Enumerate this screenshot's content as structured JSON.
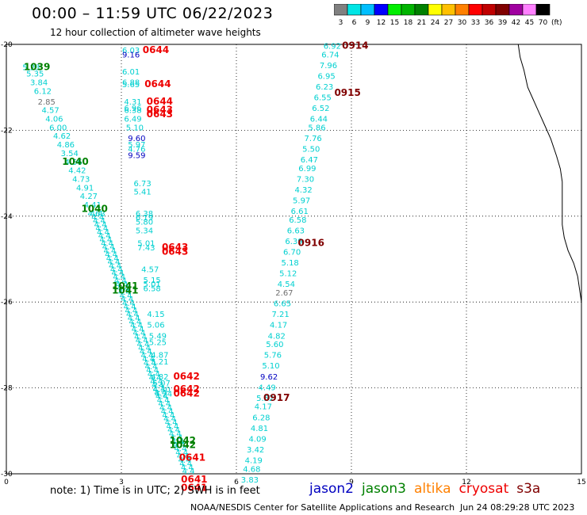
{
  "header": {
    "title": "00:00 – 11:59 UTC 06/22/2023",
    "subtitle": "12 hour collection of altimeter wave heights"
  },
  "colorbar": {
    "unit": "(ft)",
    "steps": [
      {
        "label": "3",
        "color": "#808080"
      },
      {
        "label": "6",
        "color": "#00e5e5"
      },
      {
        "label": "9",
        "color": "#00bfff"
      },
      {
        "label": "12",
        "color": "#0000ff"
      },
      {
        "label": "15",
        "color": "#00ee00"
      },
      {
        "label": "18",
        "color": "#00b400"
      },
      {
        "label": "21",
        "color": "#008000"
      },
      {
        "label": "24",
        "color": "#ffff00"
      },
      {
        "label": "27",
        "color": "#ffc000"
      },
      {
        "label": "30",
        "color": "#ff8000"
      },
      {
        "label": "33",
        "color": "#ff0000"
      },
      {
        "label": "36",
        "color": "#c00000"
      },
      {
        "label": "39",
        "color": "#800000"
      },
      {
        "label": "42",
        "color": "#a000a0"
      },
      {
        "label": "45",
        "color": "#ff80ff"
      },
      {
        "label": "70",
        "color": "#000000"
      }
    ]
  },
  "map": {
    "x_ticks": [
      "0",
      "3",
      "6",
      "9",
      "12",
      "15"
    ],
    "y_ticks": [
      "-20",
      "-22",
      "-24",
      "-26",
      "-28",
      "-30"
    ],
    "colors": {
      "cyan": "#00d0d0",
      "blue": "#0000c0",
      "green": "#008000",
      "red": "#ee0000",
      "darkred": "#800000",
      "grey": "#707070"
    },
    "time_labels": [
      {
        "text": "1039",
        "lon": 0.8,
        "lat": -20.6,
        "color": "green"
      },
      {
        "text": "1040",
        "lon": 1.8,
        "lat": -22.8,
        "color": "green"
      },
      {
        "text": "1040",
        "lon": 2.3,
        "lat": -23.9,
        "color": "green"
      },
      {
        "text": "1041",
        "lon": 3.1,
        "lat": -25.7,
        "color": "green"
      },
      {
        "text": "1041",
        "lon": 3.1,
        "lat": -25.8,
        "color": "green"
      },
      {
        "text": "1042",
        "lon": 4.6,
        "lat": -29.3,
        "color": "green"
      },
      {
        "text": "1042",
        "lon": 4.6,
        "lat": -29.4,
        "color": "green"
      },
      {
        "text": "0644",
        "lon": 3.9,
        "lat": -20.2,
        "color": "red"
      },
      {
        "text": "0644",
        "lon": 3.95,
        "lat": -21.0,
        "color": "red"
      },
      {
        "text": "0644",
        "lon": 4.0,
        "lat": -21.4,
        "color": "red"
      },
      {
        "text": "0643",
        "lon": 4.0,
        "lat": -21.6,
        "color": "red"
      },
      {
        "text": "0643",
        "lon": 4.0,
        "lat": -21.7,
        "color": "red"
      },
      {
        "text": "0643",
        "lon": 4.4,
        "lat": -24.8,
        "color": "red"
      },
      {
        "text": "0643",
        "lon": 4.4,
        "lat": -24.9,
        "color": "red"
      },
      {
        "text": "0642",
        "lon": 4.7,
        "lat": -27.8,
        "color": "red"
      },
      {
        "text": "0642",
        "lon": 4.7,
        "lat": -28.1,
        "color": "red"
      },
      {
        "text": "0642",
        "lon": 4.7,
        "lat": -28.2,
        "color": "red"
      },
      {
        "text": "0641",
        "lon": 4.85,
        "lat": -29.7,
        "color": "red"
      },
      {
        "text": "0641",
        "lon": 4.9,
        "lat": -30.2,
        "color": "red"
      },
      {
        "text": "0641",
        "lon": 4.9,
        "lat": -30.4,
        "color": "red"
      },
      {
        "text": "0914",
        "lon": 9.1,
        "lat": -20.1,
        "color": "darkred"
      },
      {
        "text": "0915",
        "lon": 8.9,
        "lat": -21.2,
        "color": "darkred"
      },
      {
        "text": "0916",
        "lon": 7.95,
        "lat": -24.7,
        "color": "darkred"
      },
      {
        "text": "0917",
        "lon": 7.05,
        "lat": -28.3,
        "color": "darkred"
      }
    ],
    "track_a": [
      {
        "text": "6.03",
        "lon": 3.25,
        "lat": -20.2,
        "color": "cyan"
      },
      {
        "text": "9.16",
        "lon": 3.25,
        "lat": -20.3,
        "color": "blue"
      },
      {
        "text": "6.01",
        "lon": 3.25,
        "lat": -20.7,
        "color": "cyan"
      },
      {
        "text": "6.88",
        "lon": 3.25,
        "lat": -20.95,
        "color": "cyan"
      },
      {
        "text": "5.65",
        "lon": 3.25,
        "lat": -21.0,
        "color": "cyan"
      },
      {
        "text": "4.31",
        "lon": 3.3,
        "lat": -21.4,
        "color": "cyan"
      },
      {
        "text": "6.96",
        "lon": 3.3,
        "lat": -21.55,
        "color": "cyan"
      },
      {
        "text": "6.38",
        "lon": 3.3,
        "lat": -21.6,
        "color": "cyan"
      },
      {
        "text": "6.49",
        "lon": 3.3,
        "lat": -21.8,
        "color": "cyan"
      },
      {
        "text": "5.10",
        "lon": 3.35,
        "lat": -22.0,
        "color": "cyan"
      },
      {
        "text": "9.60",
        "lon": 3.4,
        "lat": -22.25,
        "color": "blue"
      },
      {
        "text": "5.97",
        "lon": 3.4,
        "lat": -22.4,
        "color": "cyan"
      },
      {
        "text": "4.76",
        "lon": 3.4,
        "lat": -22.5,
        "color": "cyan"
      },
      {
        "text": "9.59",
        "lon": 3.4,
        "lat": -22.65,
        "color": "blue"
      },
      {
        "text": "6.73",
        "lon": 3.55,
        "lat": -23.3,
        "color": "cyan"
      },
      {
        "text": "5.41",
        "lon": 3.55,
        "lat": -23.5,
        "color": "cyan"
      },
      {
        "text": "6.38",
        "lon": 3.6,
        "lat": -24.0,
        "color": "cyan"
      },
      {
        "text": "6.19",
        "lon": 3.6,
        "lat": -24.1,
        "color": "cyan"
      },
      {
        "text": "5.80",
        "lon": 3.6,
        "lat": -24.2,
        "color": "cyan"
      },
      {
        "text": "5.34",
        "lon": 3.6,
        "lat": -24.4,
        "color": "cyan"
      },
      {
        "text": "5.01",
        "lon": 3.65,
        "lat": -24.7,
        "color": "cyan"
      },
      {
        "text": "7.43",
        "lon": 3.65,
        "lat": -24.8,
        "color": "cyan"
      },
      {
        "text": "4.57",
        "lon": 3.75,
        "lat": -25.3,
        "color": "cyan"
      },
      {
        "text": "5.15",
        "lon": 3.8,
        "lat": -25.55,
        "color": "cyan"
      },
      {
        "text": "5.01",
        "lon": 3.8,
        "lat": -25.65,
        "color": "cyan"
      },
      {
        "text": "6.58",
        "lon": 3.8,
        "lat": -25.75,
        "color": "cyan"
      },
      {
        "text": "4.15",
        "lon": 3.9,
        "lat": -26.35,
        "color": "cyan"
      },
      {
        "text": "5.06",
        "lon": 3.9,
        "lat": -26.6,
        "color": "cyan"
      },
      {
        "text": "5.49",
        "lon": 3.95,
        "lat": -26.85,
        "color": "cyan"
      },
      {
        "text": "5.25",
        "lon": 3.95,
        "lat": -27.0,
        "color": "cyan"
      },
      {
        "text": "4.87",
        "lon": 4.0,
        "lat": -27.3,
        "color": "cyan"
      },
      {
        "text": "5.21",
        "lon": 4.0,
        "lat": -27.45,
        "color": "cyan"
      },
      {
        "text": "4.82",
        "lon": 4.0,
        "lat": -27.8,
        "color": "cyan"
      },
      {
        "text": "5.07",
        "lon": 4.05,
        "lat": -27.95,
        "color": "cyan"
      },
      {
        "text": "4.30",
        "lon": 4.05,
        "lat": -28.1,
        "color": "cyan"
      },
      {
        "text": "4.24",
        "lon": 4.1,
        "lat": -28.2,
        "color": "cyan"
      }
    ],
    "track_c": [
      {
        "text": "6.92",
        "lon": 8.5,
        "lat": -20.1,
        "color": "cyan"
      },
      {
        "text": "6.74",
        "lon": 8.45,
        "lat": -20.3,
        "color": "cyan"
      },
      {
        "text": "7.96",
        "lon": 8.4,
        "lat": -20.55,
        "color": "cyan"
      },
      {
        "text": "6.95",
        "lon": 8.35,
        "lat": -20.8,
        "color": "cyan"
      },
      {
        "text": "6.23",
        "lon": 8.3,
        "lat": -21.05,
        "color": "cyan"
      },
      {
        "text": "6.55",
        "lon": 8.25,
        "lat": -21.3,
        "color": "cyan"
      },
      {
        "text": "6.52",
        "lon": 8.2,
        "lat": -21.55,
        "color": "cyan"
      },
      {
        "text": "6.44",
        "lon": 8.15,
        "lat": -21.8,
        "color": "cyan"
      },
      {
        "text": "5.86",
        "lon": 8.1,
        "lat": -22.0,
        "color": "cyan"
      },
      {
        "text": "7.76",
        "lon": 8.0,
        "lat": -22.25,
        "color": "cyan"
      },
      {
        "text": "5.50",
        "lon": 7.95,
        "lat": -22.5,
        "color": "cyan"
      },
      {
        "text": "6.47",
        "lon": 7.9,
        "lat": -22.75,
        "color": "cyan"
      },
      {
        "text": "6.99",
        "lon": 7.85,
        "lat": -22.95,
        "color": "cyan"
      },
      {
        "text": "7.30",
        "lon": 7.8,
        "lat": -23.2,
        "color": "cyan"
      },
      {
        "text": "4.32",
        "lon": 7.75,
        "lat": -23.45,
        "color": "cyan"
      },
      {
        "text": "5.97",
        "lon": 7.7,
        "lat": -23.7,
        "color": "cyan"
      },
      {
        "text": "6.61",
        "lon": 7.65,
        "lat": -23.95,
        "color": "cyan"
      },
      {
        "text": "6.58",
        "lon": 7.6,
        "lat": -24.15,
        "color": "cyan"
      },
      {
        "text": "6.63",
        "lon": 7.55,
        "lat": -24.4,
        "color": "cyan"
      },
      {
        "text": "6.39",
        "lon": 7.5,
        "lat": -24.65,
        "color": "cyan"
      },
      {
        "text": "6.70",
        "lon": 7.45,
        "lat": -24.9,
        "color": "cyan"
      },
      {
        "text": "5.18",
        "lon": 7.4,
        "lat": -25.15,
        "color": "cyan"
      },
      {
        "text": "5.12",
        "lon": 7.35,
        "lat": -25.4,
        "color": "cyan"
      },
      {
        "text": "4.54",
        "lon": 7.3,
        "lat": -25.65,
        "color": "cyan"
      },
      {
        "text": "2.67",
        "lon": 7.25,
        "lat": -25.85,
        "color": "grey"
      },
      {
        "text": "6.65",
        "lon": 7.2,
        "lat": -26.1,
        "color": "cyan"
      },
      {
        "text": "7.21",
        "lon": 7.15,
        "lat": -26.35,
        "color": "cyan"
      },
      {
        "text": "4.17",
        "lon": 7.1,
        "lat": -26.6,
        "color": "cyan"
      },
      {
        "text": "4.82",
        "lon": 7.05,
        "lat": -26.85,
        "color": "cyan"
      },
      {
        "text": "5.60",
        "lon": 7.0,
        "lat": -27.05,
        "color": "cyan"
      },
      {
        "text": "5.76",
        "lon": 6.95,
        "lat": -27.3,
        "color": "cyan"
      },
      {
        "text": "5.10",
        "lon": 6.9,
        "lat": -27.55,
        "color": "cyan"
      },
      {
        "text": "9.62",
        "lon": 6.85,
        "lat": -27.8,
        "color": "blue"
      },
      {
        "text": "4.49",
        "lon": 6.8,
        "lat": -28.05,
        "color": "cyan"
      },
      {
        "text": "5.52",
        "lon": 6.75,
        "lat": -28.3,
        "color": "cyan"
      },
      {
        "text": "4.17",
        "lon": 6.7,
        "lat": -28.5,
        "color": "cyan"
      },
      {
        "text": "6.28",
        "lon": 6.65,
        "lat": -28.75,
        "color": "cyan"
      },
      {
        "text": "4.81",
        "lon": 6.6,
        "lat": -29.0,
        "color": "cyan"
      },
      {
        "text": "4.09",
        "lon": 6.55,
        "lat": -29.25,
        "color": "cyan"
      },
      {
        "text": "3.42",
        "lon": 6.5,
        "lat": -29.5,
        "color": "cyan"
      },
      {
        "text": "4.19",
        "lon": 6.45,
        "lat": -29.75,
        "color": "cyan"
      },
      {
        "text": "4.68",
        "lon": 6.4,
        "lat": -29.95,
        "color": "cyan"
      },
      {
        "text": "3.83",
        "lon": 6.35,
        "lat": -30.2,
        "color": "cyan"
      }
    ],
    "track_b_left": [
      {
        "text": "5.23",
        "lon": 0.65,
        "lat": -20.6,
        "color": "cyan"
      },
      {
        "text": "5.35",
        "lon": 0.75,
        "lat": -20.75,
        "color": "cyan"
      },
      {
        "text": "3.84",
        "lon": 0.85,
        "lat": -20.95,
        "color": "cyan"
      },
      {
        "text": "6.12",
        "lon": 0.95,
        "lat": -21.15,
        "color": "cyan"
      },
      {
        "text": "2.85",
        "lon": 1.05,
        "lat": -21.4,
        "color": "grey"
      },
      {
        "text": "4.57",
        "lon": 1.15,
        "lat": -21.6,
        "color": "cyan"
      },
      {
        "text": "4.06",
        "lon": 1.25,
        "lat": -21.8,
        "color": "cyan"
      },
      {
        "text": "6.00",
        "lon": 1.35,
        "lat": -22.0,
        "color": "cyan"
      },
      {
        "text": "4.62",
        "lon": 1.45,
        "lat": -22.2,
        "color": "cyan"
      },
      {
        "text": "4.86",
        "lon": 1.55,
        "lat": -22.4,
        "color": "cyan"
      },
      {
        "text": "3.54",
        "lon": 1.65,
        "lat": -22.6,
        "color": "cyan"
      },
      {
        "text": "4.56",
        "lon": 1.75,
        "lat": -22.8,
        "color": "cyan"
      },
      {
        "text": "4.42",
        "lon": 1.85,
        "lat": -23.0,
        "color": "cyan"
      },
      {
        "text": "4.73",
        "lon": 1.95,
        "lat": -23.2,
        "color": "cyan"
      },
      {
        "text": "4.91",
        "lon": 2.05,
        "lat": -23.4,
        "color": "cyan"
      },
      {
        "text": "4.27",
        "lon": 2.15,
        "lat": -23.6,
        "color": "cyan"
      },
      {
        "text": "4.41",
        "lon": 2.25,
        "lat": -23.8,
        "color": "cyan"
      },
      {
        "text": "4.63",
        "lon": 2.35,
        "lat": -24.0,
        "color": "cyan"
      }
    ],
    "track_b_dense": {
      "count": 70,
      "text": "4.4",
      "color": "cyan",
      "start": {
        "lon": 2.35,
        "lat": -24.0
      },
      "end": {
        "lon": 4.75,
        "lat": -30.0
      }
    },
    "coastline": [
      [
        13.35,
        -20.0
      ],
      [
        13.4,
        -20.3
      ],
      [
        13.5,
        -20.6
      ],
      [
        13.6,
        -21.0
      ],
      [
        13.75,
        -21.3
      ],
      [
        13.9,
        -21.6
      ],
      [
        14.05,
        -21.9
      ],
      [
        14.2,
        -22.2
      ],
      [
        14.35,
        -22.6
      ],
      [
        14.45,
        -22.9
      ],
      [
        14.5,
        -23.2
      ],
      [
        14.5,
        -23.5
      ],
      [
        14.5,
        -23.8
      ],
      [
        14.5,
        -24.2
      ],
      [
        14.55,
        -24.5
      ],
      [
        14.65,
        -24.8
      ],
      [
        14.8,
        -25.1
      ],
      [
        14.9,
        -25.4
      ],
      [
        14.95,
        -25.7
      ],
      [
        15.0,
        -26.0
      ]
    ]
  },
  "footer": {
    "note": "note:  1) Time is in UTC;  2) SWH is in feet",
    "missions": [
      {
        "label": "jason2",
        "color": "#0000c0"
      },
      {
        "label": "jason3",
        "color": "#008000"
      },
      {
        "label": "altika",
        "color": "#ff8000"
      },
      {
        "label": "cryosat",
        "color": "#ee0000"
      },
      {
        "label": "s3a",
        "color": "#800000"
      }
    ],
    "credit": "NOAA/NESDIS Center for Satellite Applications and Research",
    "timestamp": "Jun 24 08:29:28 UTC 2023"
  }
}
